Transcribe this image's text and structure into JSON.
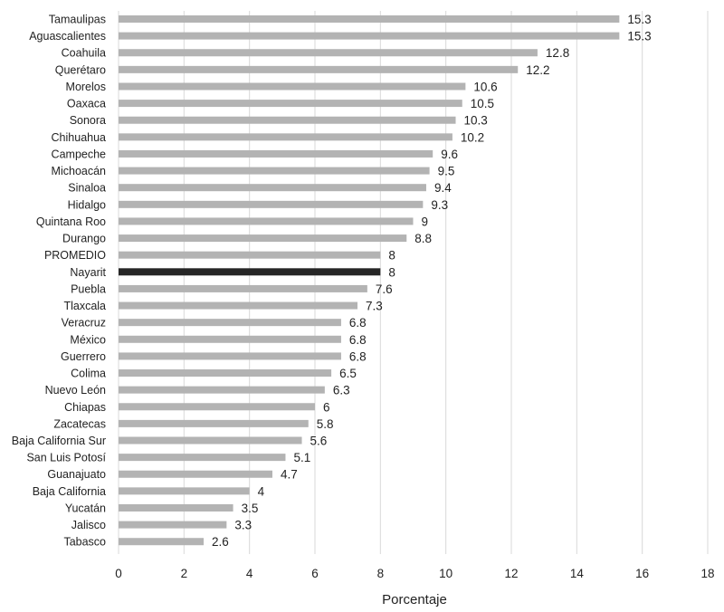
{
  "chart_data": {
    "type": "bar",
    "orientation": "horizontal",
    "categories": [
      "Tamaulipas",
      "Aguascalientes",
      "Coahuila",
      "Querétaro",
      "Morelos",
      "Oaxaca",
      "Sonora",
      "Chihuahua",
      "Campeche",
      "Michoacán",
      "Sinaloa",
      "Hidalgo",
      "Quintana Roo",
      "Durango",
      "PROMEDIO",
      "Nayarit",
      "Puebla",
      "Tlaxcala",
      "Veracruz",
      "México",
      "Guerrero",
      "Colima",
      "Nuevo León",
      "Chiapas",
      "Zacatecas",
      "Baja California Sur",
      "San Luis Potosí",
      "Guanajuato",
      "Baja California",
      "Yucatán",
      "Jalisco",
      "Tabasco"
    ],
    "values": [
      15.3,
      15.3,
      12.8,
      12.2,
      10.6,
      10.5,
      10.3,
      10.2,
      9.6,
      9.5,
      9.4,
      9.3,
      9,
      8.8,
      8,
      8,
      7.6,
      7.3,
      6.8,
      6.8,
      6.8,
      6.5,
      6.3,
      6,
      5.8,
      5.6,
      5.1,
      4.7,
      4,
      3.5,
      3.3,
      2.6
    ],
    "value_labels": [
      "15.3",
      "15.3",
      "12.8",
      "12.2",
      "10.6",
      "10.5",
      "10.3",
      "10.2",
      "9.6",
      "9.5",
      "9.4",
      "9.3",
      "9",
      "8.8",
      "8",
      "8",
      "7.6",
      "7.3",
      "6.8",
      "6.8",
      "6.8",
      "6.5",
      "6.3",
      "6",
      "5.8",
      "5.6",
      "5.1",
      "4.7",
      "4",
      "3.5",
      "3.3",
      "2.6"
    ],
    "highlight": "Nayarit",
    "xlabel": "Porcentaje",
    "xlim": [
      0,
      18
    ],
    "xticks": [
      0,
      2,
      4,
      6,
      8,
      10,
      12,
      14,
      16,
      18
    ],
    "grid": true,
    "colors": {
      "bar": "#b3b3b3",
      "highlight_bar": "#262626",
      "grid": "#d9d9d9",
      "text": "#222222"
    }
  }
}
